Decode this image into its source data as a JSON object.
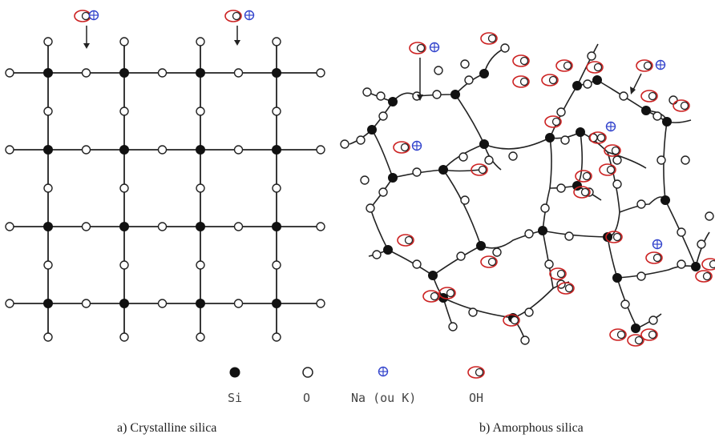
{
  "legend": {
    "si": "Si",
    "o": "O",
    "na": "Na (ou K)",
    "oh": "OH"
  },
  "captions": {
    "crystalline": "a) Crystalline silica",
    "amorphous": "b) Amorphous silica"
  },
  "colors": {
    "bond": "#222222",
    "silicon": "#111111",
    "oxygen_fill": "#ffffff",
    "hydroxyl": "#cc2222",
    "sodium": "#3344cc"
  }
}
